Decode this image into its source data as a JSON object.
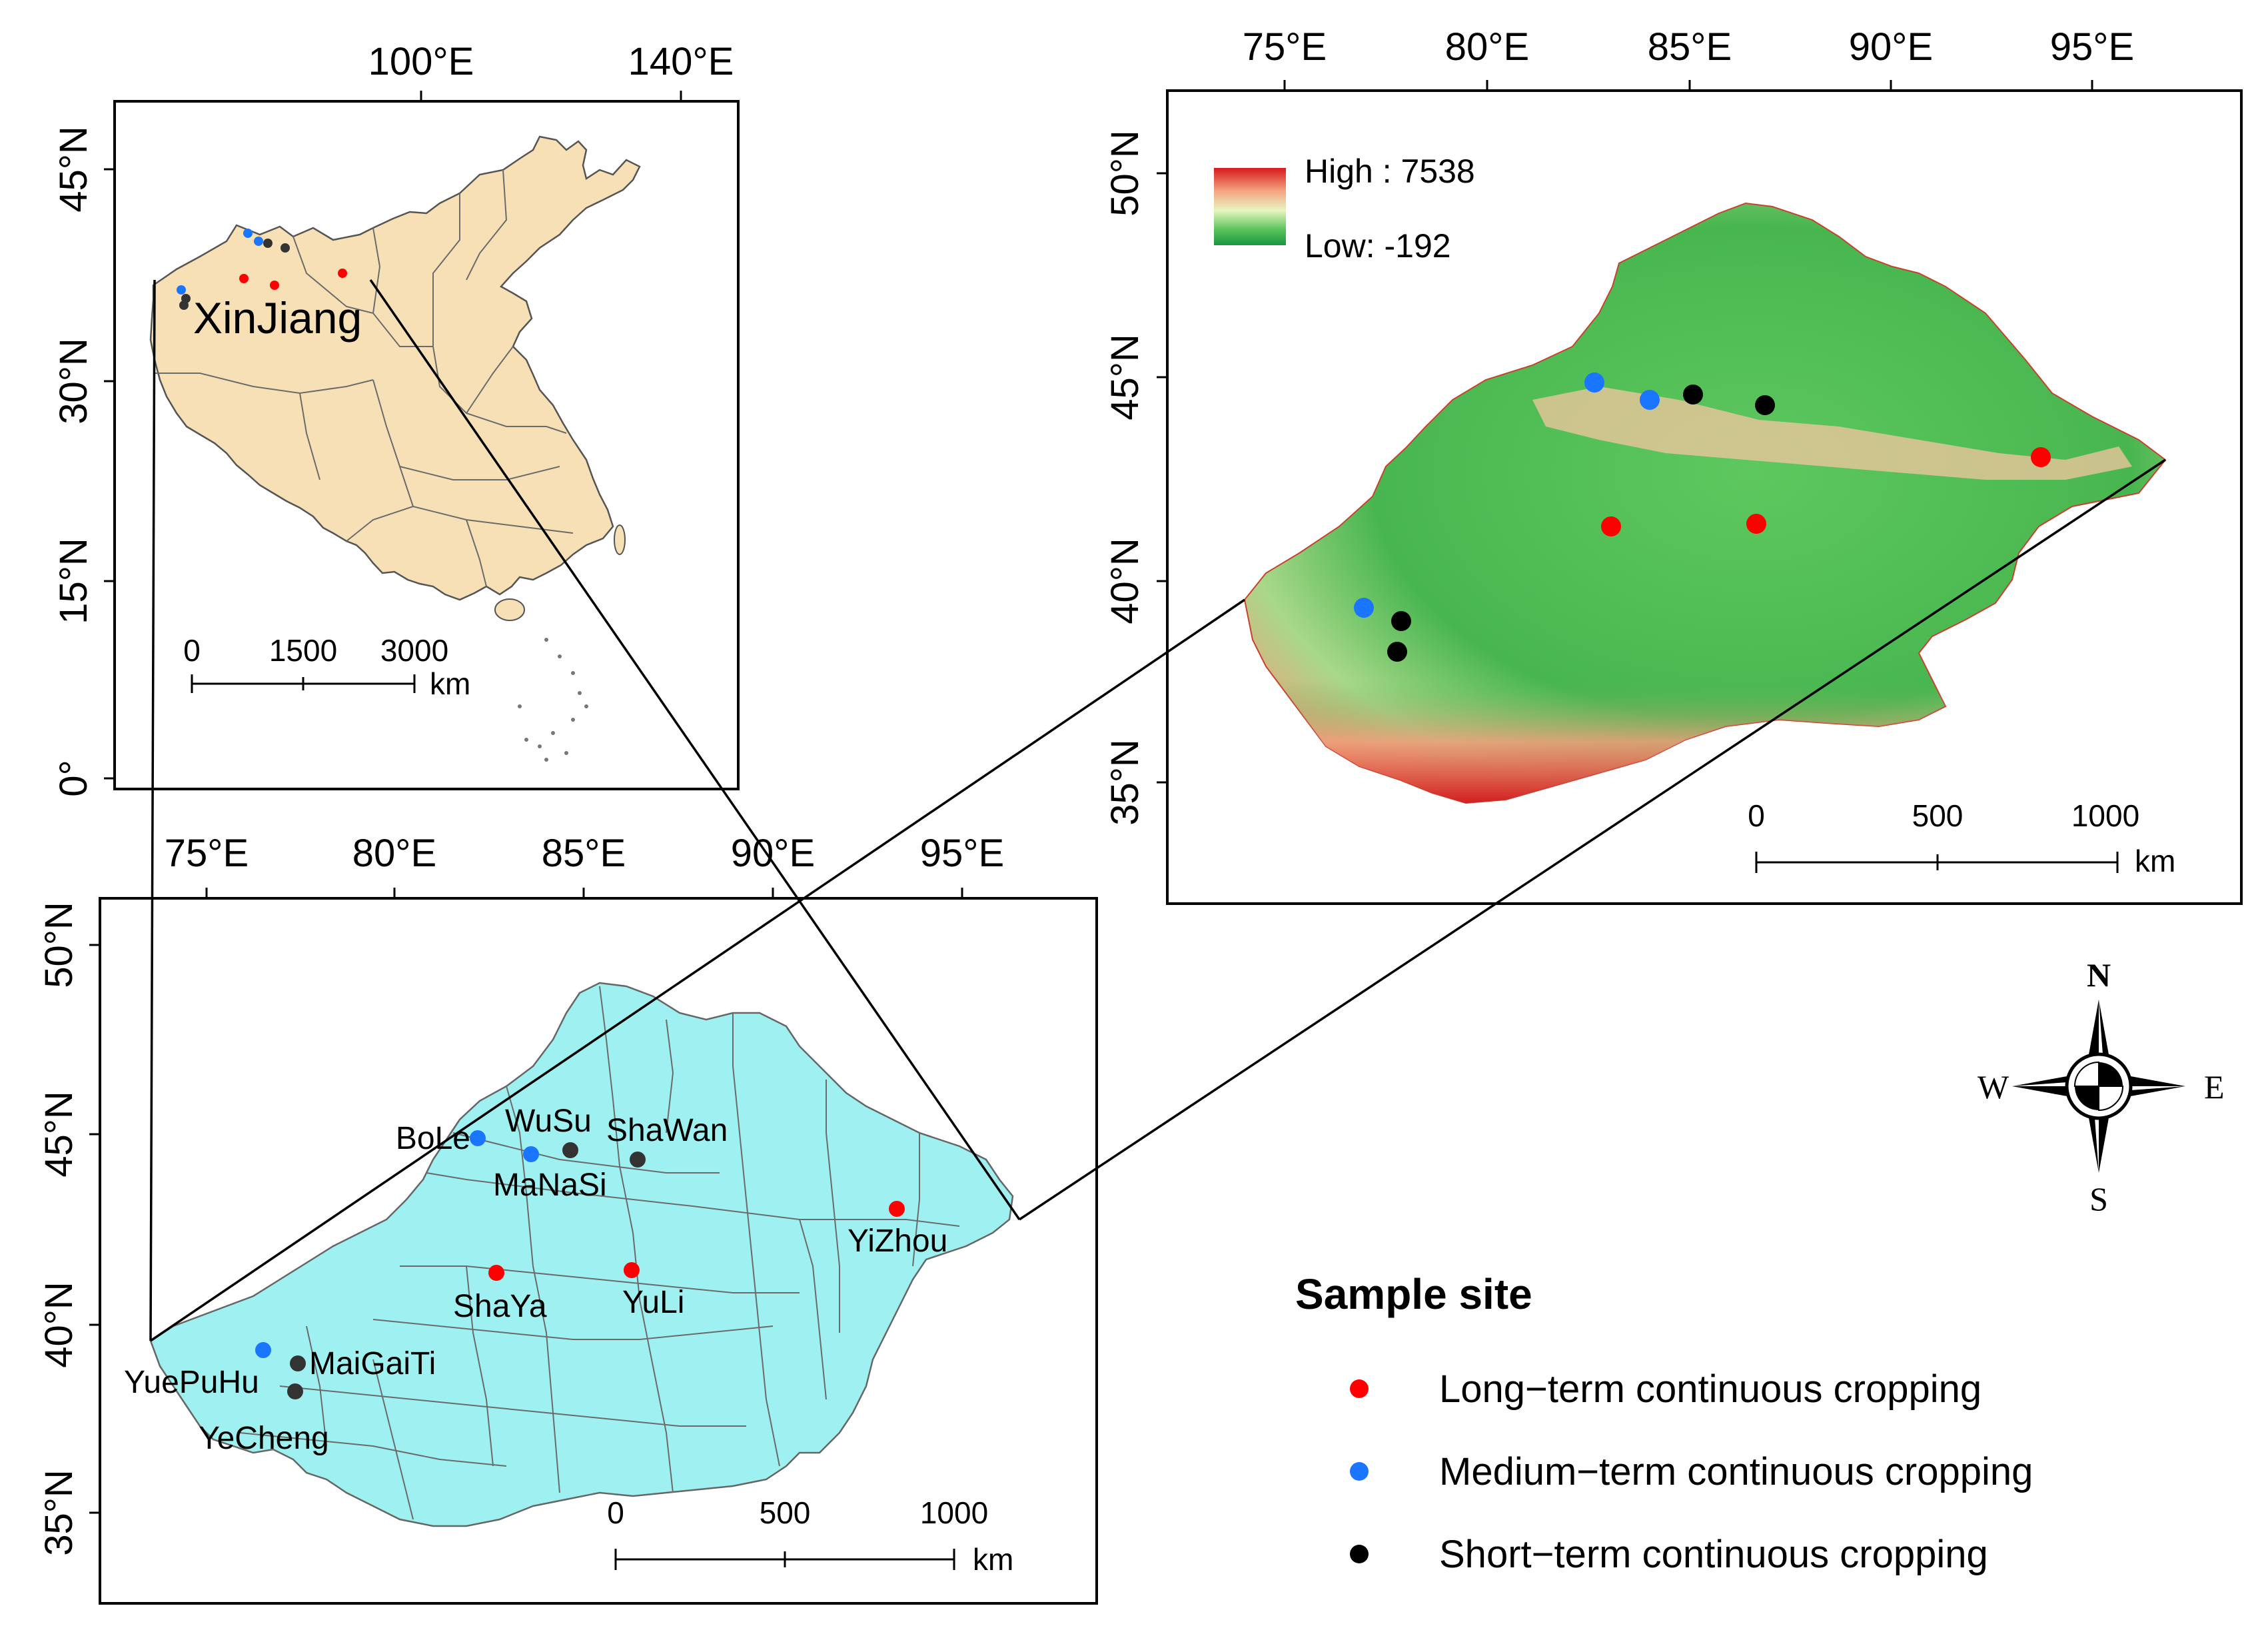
{
  "inset_china": {
    "lon_ticks": [
      "100°E",
      "140°E"
    ],
    "lat_ticks": [
      "45°N",
      "30°N",
      "15°N",
      "0°"
    ],
    "region_label": "XinJiang",
    "scale": {
      "labels": [
        "0",
        "1500",
        "3000"
      ],
      "unit": "km"
    },
    "colors": {
      "land": "#f7e0b5"
    }
  },
  "dem_map": {
    "lon_ticks": [
      "75°E",
      "80°E",
      "85°E",
      "90°E",
      "95°E"
    ],
    "lat_ticks": [
      "50°N",
      "45°N",
      "40°N",
      "35°N"
    ],
    "legend_high": "High : 7538",
    "legend_low": "Low: -192",
    "scale": {
      "labels": [
        "0",
        "500",
        "1000"
      ],
      "unit": "km"
    }
  },
  "site_map": {
    "lon_ticks": [
      "75°E",
      "80°E",
      "85°E",
      "90°E",
      "95°E"
    ],
    "lat_ticks": [
      "50°N",
      "45°N",
      "40°N",
      "35°N"
    ],
    "scale": {
      "labels": [
        "0",
        "500",
        "1000"
      ],
      "unit": "km"
    },
    "colors": {
      "land": "#9ff0f0"
    },
    "sites": [
      {
        "name": "BoLe",
        "category": "medium"
      },
      {
        "name": "WuSu",
        "category": "short"
      },
      {
        "name": "ShaWan",
        "category": "short"
      },
      {
        "name": "MaNaSi",
        "category": "medium"
      },
      {
        "name": "YiZhou",
        "category": "long"
      },
      {
        "name": "ShaYa",
        "category": "long"
      },
      {
        "name": "YuLi",
        "category": "long"
      },
      {
        "name": "YuePuHu",
        "category": "medium"
      },
      {
        "name": "MaiGaiTi",
        "category": "short"
      },
      {
        "name": "YeCheng",
        "category": "short"
      }
    ]
  },
  "compass": {
    "n": "N",
    "s": "S",
    "e": "E",
    "w": "W"
  },
  "legend": {
    "title": "Sample site",
    "items": [
      {
        "label": "Long−term continuous cropping",
        "color": "#ff0000"
      },
      {
        "label": "Medium−term continuous cropping",
        "color": "#1a75ff"
      },
      {
        "label": "Short−term continuous cropping",
        "color": "#000000"
      }
    ]
  }
}
